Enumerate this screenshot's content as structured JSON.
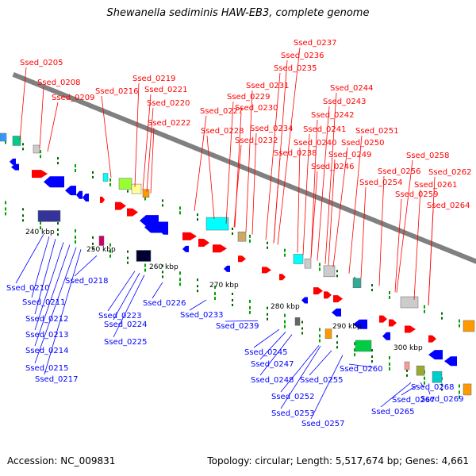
{
  "title": "Shewanella sediminis HAW-EB3, complete genome",
  "footer": {
    "accession": "Accession: NC_009831",
    "topology": "Topology: circular; Length: 5,517,674 bp; Genes: 4,661"
  },
  "colors": {
    "forward": "#ff0000",
    "reverse": "#0000ff",
    "backbone": "#808080"
  },
  "scale_labels": [
    "240 kbp",
    "250 kbp",
    "260 kbp",
    "270 kbp",
    "280 kbp",
    "290 kbp",
    "300 kbp"
  ],
  "top_genes": [
    "Ssed_0205",
    "Ssed_0208",
    "Ssed_0209",
    "Ssed_0216",
    "Ssed_0219",
    "Ssed_0221",
    "Ssed_0220",
    "Ssed_0222",
    "Ssed_0227",
    "Ssed_0228",
    "Ssed_0229",
    "Ssed_0230",
    "Ssed_0231",
    "Ssed_0232",
    "Ssed_0234",
    "Ssed_0235",
    "Ssed_0236",
    "Ssed_0237",
    "Ssed_0238",
    "Ssed_0240",
    "Ssed_0241",
    "Ssed_0242",
    "Ssed_0243",
    "Ssed_0244",
    "Ssed_0246",
    "Ssed_0249",
    "Ssed_0250",
    "Ssed_0251",
    "Ssed_0254",
    "Ssed_0256",
    "Ssed_0258",
    "Ssed_0259",
    "Ssed_0261",
    "Ssed_0262",
    "Ssed_0264"
  ],
  "bottom_genes": [
    "Ssed_0210",
    "Ssed_0211",
    "Ssed_0212",
    "Ssed_0213",
    "Ssed_0214",
    "Ssed_0215",
    "Ssed_0217",
    "Ssed_0218",
    "Ssed_0223",
    "Ssed_0224",
    "Ssed_0225",
    "Ssed_0226",
    "Ssed_0233",
    "Ssed_0239",
    "Ssed_0245",
    "Ssed_0247",
    "Ssed_0248",
    "Ssed_0252",
    "Ssed_0253",
    "Ssed_0255",
    "Ssed_0257",
    "Ssed_0260",
    "Ssed_0265",
    "Ssed_0267",
    "Ssed_0268",
    "Ssed_0269"
  ]
}
